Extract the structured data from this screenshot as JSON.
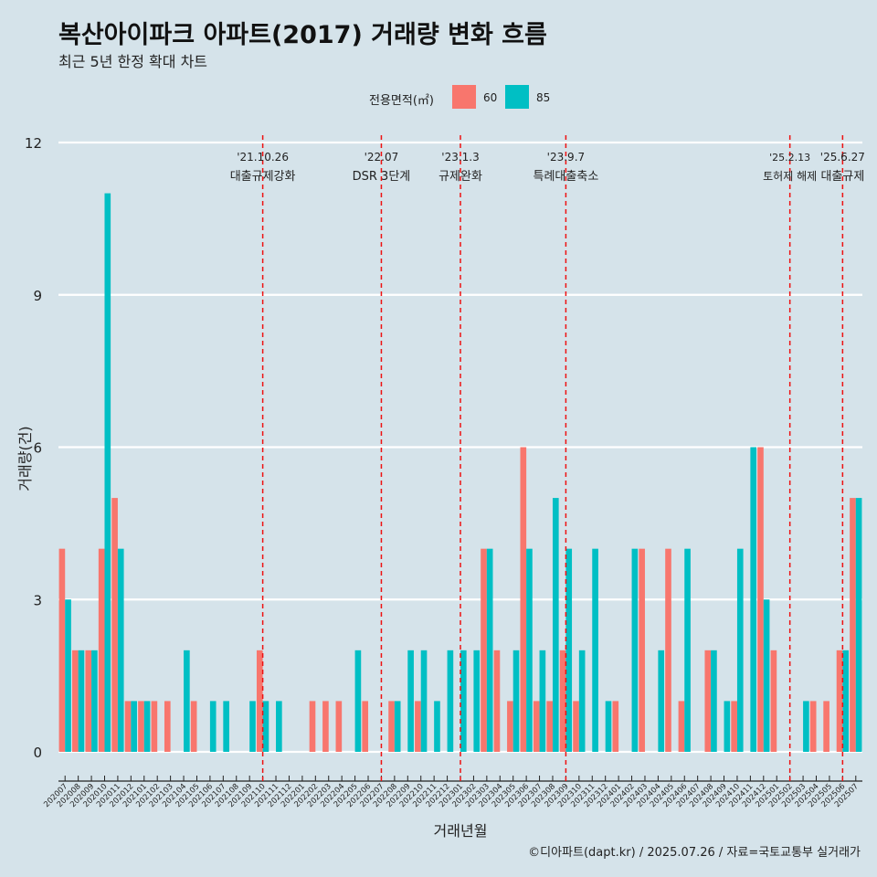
{
  "header": {
    "title": "복산아이파크 아파트(2017) 거래량 변화 흐름",
    "subtitle": "최근 5년 한정 확대 차트"
  },
  "legend": {
    "title": "전용면적(㎡)",
    "items": [
      {
        "label": "60",
        "color": "#f8766d"
      },
      {
        "label": "85",
        "color": "#00bfc4"
      }
    ]
  },
  "footer": {
    "credit": "©디아파트(dapt.kr) / 2025.07.26 / 자료=국토교통부 실거래가"
  },
  "chart_data": {
    "type": "bar",
    "title": "복산아이파크 아파트(2017) 거래량 변화 흐름",
    "xlabel": "거래년월",
    "ylabel": "거래량(건)",
    "ylim": [
      0,
      12
    ],
    "yticks": [
      0,
      3,
      6,
      9,
      12
    ],
    "categories": [
      "202007",
      "202008",
      "202009",
      "202010",
      "202011",
      "202012",
      "202101",
      "202102",
      "202103",
      "202104",
      "202105",
      "202106",
      "202107",
      "202108",
      "202109",
      "202110",
      "202111",
      "202112",
      "202201",
      "202202",
      "202203",
      "202204",
      "202205",
      "202206",
      "202207",
      "202208",
      "202209",
      "202210",
      "202211",
      "202212",
      "202301",
      "202302",
      "202303",
      "202304",
      "202305",
      "202306",
      "202307",
      "202308",
      "202309",
      "202310",
      "202311",
      "202312",
      "202401",
      "202402",
      "202403",
      "202404",
      "202405",
      "202406",
      "202407",
      "202408",
      "202409",
      "202410",
      "202411",
      "202412",
      "202501",
      "202502",
      "202503",
      "202504",
      "202505",
      "202506",
      "202507"
    ],
    "series": [
      {
        "name": "60",
        "color": "#f8766d",
        "values": [
          4,
          2,
          2,
          4,
          5,
          1,
          1,
          1,
          1,
          0,
          1,
          0,
          0,
          0,
          0,
          2,
          0,
          0,
          0,
          1,
          1,
          1,
          0,
          1,
          0,
          1,
          0,
          1,
          0,
          0,
          0,
          0,
          4,
          2,
          1,
          6,
          1,
          1,
          2,
          1,
          0,
          0,
          1,
          0,
          4,
          0,
          4,
          1,
          0,
          2,
          0,
          1,
          0,
          6,
          2,
          0,
          0,
          1,
          1,
          2,
          5
        ]
      },
      {
        "name": "85",
        "color": "#00bfc4",
        "values": [
          3,
          2,
          2,
          11,
          4,
          1,
          1,
          0,
          0,
          2,
          0,
          1,
          1,
          0,
          1,
          1,
          1,
          0,
          0,
          0,
          0,
          0,
          2,
          0,
          0,
          1,
          2,
          2,
          1,
          2,
          2,
          2,
          4,
          0,
          2,
          4,
          2,
          5,
          4,
          2,
          4,
          1,
          0,
          4,
          0,
          2,
          0,
          4,
          0,
          2,
          1,
          4,
          6,
          3,
          0,
          0,
          1,
          0,
          0,
          2,
          5
        ]
      }
    ],
    "events": [
      {
        "label_date": "'21.10.26",
        "label_text": "대출규제강화",
        "category": "202110"
      },
      {
        "label_date": "'22.07",
        "label_text": "DSR 3단계",
        "category": "202207"
      },
      {
        "label_date": "'23.1.3",
        "label_text": "규제완화",
        "category": "202301"
      },
      {
        "label_date": "'23.9.7",
        "label_text": "특례대출축소",
        "category": "202309"
      },
      {
        "label_date": "'25.2.13",
        "label_text": "토허제 해제",
        "category": "202502"
      },
      {
        "label_date": "'25.6.27",
        "label_text": "대출규제",
        "category": "202506"
      }
    ],
    "grid": true,
    "legend_position": "top"
  }
}
